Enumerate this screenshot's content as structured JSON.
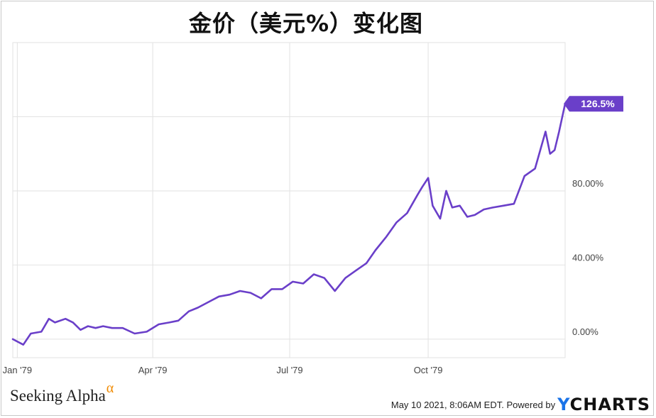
{
  "chart_data": {
    "type": "line",
    "title": "金价（美元%）变化图",
    "xlabel": "",
    "ylabel": "",
    "x_range": [
      "1978-12-29",
      "1979-12-31"
    ],
    "x_ticks": [
      {
        "date": "1979-01-01",
        "label": "Jan '79"
      },
      {
        "date": "1979-04-01",
        "label": "Apr '79"
      },
      {
        "date": "1979-07-01",
        "label": "Jul '79"
      },
      {
        "date": "1979-10-01",
        "label": "Oct '79"
      }
    ],
    "y_ticks": [
      {
        "value": 0,
        "label": "0.00%"
      },
      {
        "value": 40,
        "label": "40.00%"
      },
      {
        "value": 80,
        "label": "80.00%"
      }
    ],
    "ylim": [
      -10,
      160
    ],
    "grid": true,
    "series": [
      {
        "color": "#6a3fc9",
        "x": [
          "1978-12-29",
          "1979-01-05",
          "1979-01-10",
          "1979-01-17",
          "1979-01-22",
          "1979-01-26",
          "1979-02-02",
          "1979-02-07",
          "1979-02-12",
          "1979-02-17",
          "1979-02-22",
          "1979-02-27",
          "1979-03-05",
          "1979-03-12",
          "1979-03-20",
          "1979-03-28",
          "1979-04-05",
          "1979-04-12",
          "1979-04-18",
          "1979-04-25",
          "1979-05-01",
          "1979-05-08",
          "1979-05-15",
          "1979-05-22",
          "1979-05-29",
          "1979-06-05",
          "1979-06-12",
          "1979-06-19",
          "1979-06-26",
          "1979-07-03",
          "1979-07-10",
          "1979-07-17",
          "1979-07-24",
          "1979-07-31",
          "1979-08-07",
          "1979-08-14",
          "1979-08-21",
          "1979-08-27",
          "1979-09-03",
          "1979-09-10",
          "1979-09-17",
          "1979-09-24",
          "1979-09-27",
          "1979-10-01",
          "1979-10-04",
          "1979-10-09",
          "1979-10-13",
          "1979-10-17",
          "1979-10-22",
          "1979-10-27",
          "1979-11-01",
          "1979-11-07",
          "1979-11-13",
          "1979-11-20",
          "1979-11-27",
          "1979-12-04",
          "1979-12-11",
          "1979-12-18",
          "1979-12-21",
          "1979-12-24",
          "1979-12-27",
          "1979-12-31"
        ],
        "values": [
          0,
          -3,
          3,
          4,
          11,
          9,
          11,
          9,
          5,
          7,
          6,
          7,
          6,
          6,
          3,
          4,
          8,
          9,
          10,
          15,
          17,
          20,
          23,
          24,
          26,
          25,
          22,
          27,
          27,
          31,
          30,
          35,
          33,
          26,
          33,
          37,
          41,
          48,
          55,
          63,
          68,
          78,
          82,
          87,
          72,
          65,
          80,
          71,
          72,
          66,
          67,
          70,
          71,
          72,
          73,
          88,
          92,
          112,
          100,
          102,
          112,
          127
        ]
      }
    ],
    "end_label": "126.5%"
  },
  "branding": {
    "source_name": "Seeking Alpha",
    "source_mark": "α",
    "timestamp": "May 10 2021, 8:06AM EDT.",
    "powered_by": "Powered by",
    "provider_y": "Y",
    "provider_rest": "CHARTS"
  },
  "colors": {
    "line": "#6a3fc9",
    "grid": "#e2e2e2",
    "axis_text": "#444444"
  }
}
